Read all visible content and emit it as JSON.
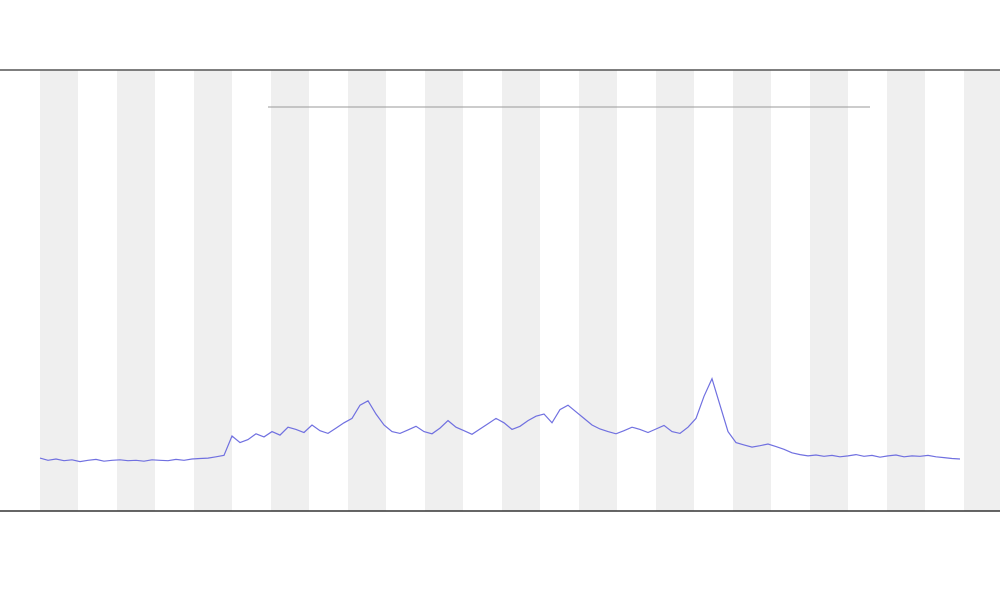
{
  "chart_data": {
    "type": "line",
    "series": [
      {
        "color": "#7070e0",
        "values": [
          12,
          11.5,
          11.8,
          11.4,
          11.6,
          11.2,
          11.5,
          11.7,
          11.3,
          11.5,
          11.6,
          11.4,
          11.5,
          11.3,
          11.6,
          11.5,
          11.4,
          11.7,
          11.5,
          11.8,
          11.9,
          12,
          12.3,
          12.6,
          17,
          15.5,
          16.2,
          17.5,
          16.8,
          18,
          17.2,
          19,
          18.5,
          17.8,
          19.5,
          18.2,
          17.6,
          18.8,
          20,
          21,
          24,
          25,
          22,
          19.5,
          18,
          17.6,
          18.4,
          19.2,
          18,
          17.5,
          18.8,
          20.5,
          19,
          18.2,
          17.4,
          18.6,
          19.8,
          21,
          20,
          18.5,
          19.2,
          20.5,
          21.5,
          22,
          20,
          23,
          24,
          22.5,
          21,
          19.5,
          18.6,
          18,
          17.5,
          18.2,
          19,
          18.5,
          17.8,
          18.6,
          19.4,
          18,
          17.6,
          19,
          21,
          26,
          30,
          24,
          18,
          15.5,
          15,
          14.5,
          14.8,
          15.2,
          14.6,
          14,
          13.2,
          12.8,
          12.5,
          12.7,
          12.4,
          12.6,
          12.3,
          12.5,
          12.8,
          12.4,
          12.6,
          12.2,
          12.5,
          12.7,
          12.3,
          12.5,
          12.4,
          12.6,
          12.3,
          12.1,
          11.9,
          11.8
        ]
      }
    ],
    "ylim": [
      0,
      100
    ]
  }
}
